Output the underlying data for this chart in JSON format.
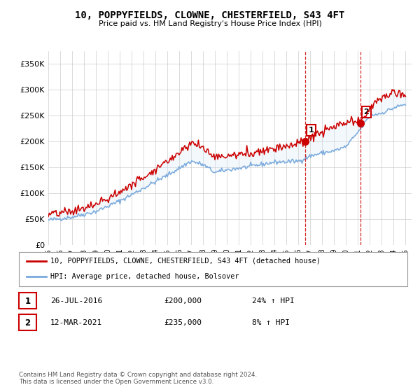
{
  "title": "10, POPPYFIELDS, CLOWNE, CHESTERFIELD, S43 4FT",
  "subtitle": "Price paid vs. HM Land Registry's House Price Index (HPI)",
  "ylabel_ticks": [
    "£0",
    "£50K",
    "£100K",
    "£150K",
    "£200K",
    "£250K",
    "£300K",
    "£350K"
  ],
  "ytick_values": [
    0,
    50000,
    100000,
    150000,
    200000,
    250000,
    300000,
    350000
  ],
  "ylim": [
    0,
    375000
  ],
  "xlim_start": 1995.0,
  "xlim_end": 2025.5,
  "legend_line1": "10, POPPYFIELDS, CLOWNE, CHESTERFIELD, S43 4FT (detached house)",
  "legend_line2": "HPI: Average price, detached house, Bolsover",
  "transaction1_label": "1",
  "transaction1_date": "26-JUL-2016",
  "transaction1_price": "£200,000",
  "transaction1_hpi": "24% ↑ HPI",
  "transaction1_year": 2016.56,
  "transaction1_value": 200000,
  "transaction2_label": "2",
  "transaction2_date": "12-MAR-2021",
  "transaction2_price": "£235,000",
  "transaction2_hpi": "8% ↑ HPI",
  "transaction2_year": 2021.19,
  "transaction2_value": 235000,
  "price_color": "#cc0000",
  "hpi_color": "#7aaadd",
  "fill_color": "#d0e4f5",
  "transaction_vline_color": "#cc0000",
  "grid_color": "#cccccc",
  "background_color": "#ffffff",
  "copyright_text": "Contains HM Land Registry data © Crown copyright and database right 2024.\nThis data is licensed under the Open Government Licence v3.0."
}
